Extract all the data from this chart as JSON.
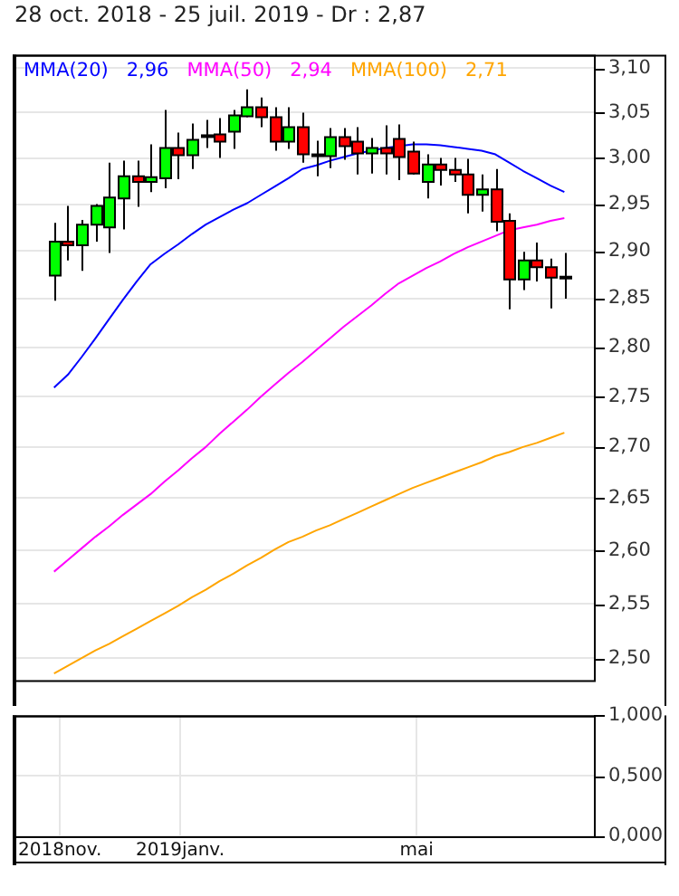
{
  "chart_data": [
    {
      "type": "candlestick",
      "title": "28 oct. 2018 - 25 juil. 2019 - Dr : 2,87",
      "x": [
        "2018-10-29",
        "2018-11-05",
        "2018-11-12",
        "2018-11-19",
        "2018-11-26",
        "2018-12-03",
        "2018-12-10",
        "2018-12-17",
        "2018-12-24",
        "2018-12-31",
        "2019-01-07",
        "2019-01-14",
        "2019-01-21",
        "2019-01-28",
        "2019-02-04",
        "2019-02-11",
        "2019-02-18",
        "2019-02-25",
        "2019-03-04",
        "2019-03-11",
        "2019-03-18",
        "2019-03-25",
        "2019-04-01",
        "2019-04-08",
        "2019-04-15",
        "2019-04-22",
        "2019-04-29",
        "2019-05-06",
        "2019-05-13",
        "2019-05-20",
        "2019-05-27",
        "2019-06-03",
        "2019-06-10",
        "2019-06-17",
        "2019-06-24",
        "2019-07-01",
        "2019-07-08",
        "2019-07-15"
      ],
      "ohlc": [
        [
          2.874,
          2.93,
          2.848,
          2.91
        ],
        [
          2.91,
          2.948,
          2.89,
          2.906
        ],
        [
          2.906,
          2.933,
          2.879,
          2.928
        ],
        [
          2.928,
          2.95,
          2.91,
          2.948
        ],
        [
          2.925,
          2.995,
          2.898,
          2.957
        ],
        [
          2.956,
          2.997,
          2.923,
          2.98
        ],
        [
          2.98,
          2.997,
          2.947,
          2.974
        ],
        [
          2.974,
          3.015,
          2.963,
          2.979
        ],
        [
          2.978,
          3.053,
          2.967,
          3.011
        ],
        [
          3.011,
          3.028,
          2.977,
          3.003
        ],
        [
          3.003,
          3.038,
          2.988,
          3.02
        ],
        [
          3.024,
          3.042,
          3.011,
          3.024
        ],
        [
          3.026,
          3.044,
          3.0,
          3.018
        ],
        [
          3.029,
          3.053,
          3.01,
          3.047
        ],
        [
          3.046,
          3.076,
          3.045,
          3.056
        ],
        [
          3.056,
          3.067,
          3.034,
          3.045
        ],
        [
          3.045,
          3.056,
          3.008,
          3.018
        ],
        [
          3.018,
          3.056,
          3.01,
          3.034
        ],
        [
          3.034,
          3.05,
          2.995,
          3.004
        ],
        [
          3.003,
          3.019,
          2.98,
          3.003
        ],
        [
          3.002,
          3.033,
          2.989,
          3.023
        ],
        [
          3.023,
          3.033,
          2.998,
          3.013
        ],
        [
          3.018,
          3.034,
          2.982,
          3.005
        ],
        [
          3.005,
          3.022,
          2.983,
          3.011
        ],
        [
          3.011,
          3.036,
          2.982,
          3.005
        ],
        [
          3.021,
          3.037,
          2.976,
          3.001
        ],
        [
          3.007,
          3.018,
          2.982,
          2.983
        ],
        [
          2.974,
          3.004,
          2.956,
          2.993
        ],
        [
          2.993,
          3.0,
          2.97,
          2.987
        ],
        [
          2.987,
          3.0,
          2.974,
          2.982
        ],
        [
          2.982,
          2.999,
          2.94,
          2.96
        ],
        [
          2.96,
          2.982,
          2.942,
          2.966
        ],
        [
          2.966,
          2.988,
          2.921,
          2.931
        ],
        [
          2.932,
          2.94,
          2.839,
          2.87
        ],
        [
          2.87,
          2.899,
          2.859,
          2.89
        ],
        [
          2.89,
          2.909,
          2.868,
          2.883
        ],
        [
          2.883,
          2.892,
          2.84,
          2.872
        ],
        [
          2.872,
          2.898,
          2.85,
          2.872
        ]
      ],
      "colors": [
        "#00ff00",
        "#ff0000",
        "#00ff00",
        "#00ff00",
        "#00ff00",
        "#00ff00",
        "#ff0000",
        "#00ff00",
        "#00ff00",
        "#ff0000",
        "#00ff00",
        "#000000",
        "#ff0000",
        "#00ff00",
        "#00ff00",
        "#ff0000",
        "#ff0000",
        "#00ff00",
        "#ff0000",
        "#000000",
        "#00ff00",
        "#ff0000",
        "#ff0000",
        "#00ff00",
        "#ff0000",
        "#ff0000",
        "#ff0000",
        "#00ff00",
        "#ff0000",
        "#ff0000",
        "#ff0000",
        "#00ff00",
        "#ff0000",
        "#ff0000",
        "#00ff00",
        "#ff0000",
        "#ff0000",
        "#000000"
      ],
      "series": [
        {
          "type": "line",
          "name": "MMA(20)",
          "color": "#0000ff",
          "values": [
            2.759,
            2.772,
            2.79,
            2.809,
            2.829,
            2.849,
            2.868,
            2.886,
            2.897,
            2.907,
            2.918,
            2.928,
            2.936,
            2.944,
            2.951,
            2.96,
            2.969,
            2.978,
            2.988,
            2.992,
            2.997,
            3.001,
            3.005,
            3.008,
            3.011,
            3.013,
            3.015,
            3.015,
            3.014,
            3.012,
            3.01,
            3.008,
            3.004,
            2.995,
            2.986,
            2.978,
            2.97,
            2.963
          ]
        },
        {
          "type": "line",
          "name": "MMA(50)",
          "color": "#ff00ff",
          "values": [
            2.58,
            2.591,
            2.602,
            2.613,
            2.623,
            2.634,
            2.644,
            2.654,
            2.666,
            2.677,
            2.689,
            2.7,
            2.713,
            2.725,
            2.737,
            2.75,
            2.762,
            2.774,
            2.785,
            2.797,
            2.809,
            2.821,
            2.832,
            2.843,
            2.855,
            2.866,
            2.874,
            2.882,
            2.889,
            2.897,
            2.904,
            2.91,
            2.916,
            2.922,
            2.925,
            2.928,
            2.932,
            2.935
          ]
        },
        {
          "type": "line",
          "name": "MMA(100)",
          "color": "#ffa500",
          "values": [
            2.486,
            2.493,
            2.5,
            2.507,
            2.513,
            2.52,
            2.527,
            2.534,
            2.541,
            2.548,
            2.556,
            2.563,
            2.571,
            2.578,
            2.586,
            2.593,
            2.601,
            2.608,
            2.613,
            2.619,
            2.624,
            2.63,
            2.636,
            2.642,
            2.648,
            2.654,
            2.66,
            2.665,
            2.67,
            2.675,
            2.68,
            2.685,
            2.691,
            2.695,
            2.7,
            2.704,
            2.709,
            2.714
          ]
        }
      ],
      "annotations": [
        "2,96",
        "2,94",
        "2,71"
      ],
      "legend": "top left",
      "log": "y",
      "grid": true,
      "tick_labels": "y",
      "xlim": [
        "2018-10-08",
        "2019-07-30"
      ],
      "ylim": [
        2.48,
        3.115
      ],
      "yticks": [
        {
          "value": 2.5,
          "label": "2,50"
        },
        {
          "value": 2.55,
          "label": "2,55"
        },
        {
          "value": 2.6,
          "label": "2,60"
        },
        {
          "value": 2.65,
          "label": "2,65"
        },
        {
          "value": 2.7,
          "label": "2,70"
        },
        {
          "value": 2.75,
          "label": "2,75"
        },
        {
          "value": 2.8,
          "label": "2,80"
        },
        {
          "value": 2.85,
          "label": "2,85"
        },
        {
          "value": 2.9,
          "label": "2,90"
        },
        {
          "value": 2.95,
          "label": "2,95"
        },
        {
          "value": 3.0,
          "label": "3,00"
        },
        {
          "value": 3.05,
          "label": "3,05"
        },
        {
          "value": 3.1,
          "label": "3,10"
        }
      ]
    },
    {
      "type": "bar",
      "grid": true,
      "xlim": [
        "2018-10-08",
        "2019-07-30"
      ],
      "xticks": [
        {
          "value": "2018-11-01",
          "label": "2018nov."
        },
        {
          "value": "2019-01-01",
          "label": "2019janv."
        },
        {
          "value": "2019-05-01",
          "label": "mai"
        }
      ],
      "ylim": [
        0,
        1
      ],
      "yticks": [
        {
          "value": 0,
          "label": "0,000"
        },
        {
          "value": 0.5,
          "label": "0,500"
        },
        {
          "value": 1,
          "label": "1,000"
        }
      ]
    }
  ]
}
